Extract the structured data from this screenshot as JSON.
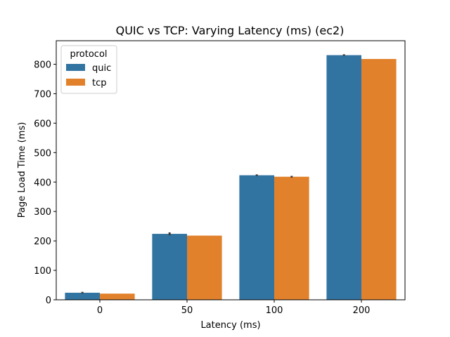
{
  "chart_data": {
    "type": "bar",
    "title": "QUIC vs TCP: Varying Latency (ms) (ec2)",
    "xlabel": "Latency (ms)",
    "ylabel": "Page Load Time (ms)",
    "categories": [
      "0",
      "50",
      "100",
      "200"
    ],
    "yticks": [
      0,
      100,
      200,
      300,
      400,
      500,
      600,
      700,
      800
    ],
    "ylim": [
      0,
      880
    ],
    "legend": {
      "title": "protocol",
      "placement": "top-left"
    },
    "series": [
      {
        "name": "quic",
        "color": "#3274a1",
        "values": [
          24,
          224,
          423,
          831
        ],
        "err": [
          3,
          5,
          3,
          3
        ]
      },
      {
        "name": "tcp",
        "color": "#e1812c",
        "values": [
          21,
          218,
          418,
          818
        ],
        "err": [
          0,
          0,
          3,
          0
        ]
      }
    ]
  }
}
